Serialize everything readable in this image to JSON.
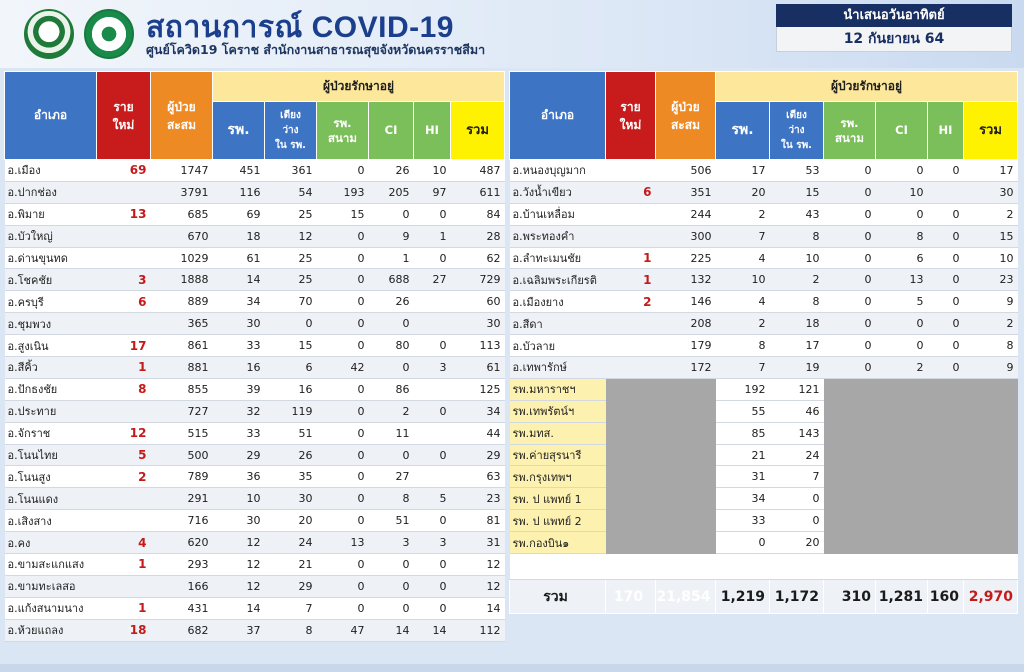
{
  "header": {
    "title": "สถานการณ์ COVID-19",
    "subtitle": "ศูนย์โควิด19 โคราช  สำนักงานสาธารณสุขจังหวัดนครราชสีมา",
    "date_label": "นำเสนอวันอาทิตย์",
    "date_value": "12 กันยายน 64",
    "logos": [
      "provincial-health-office-logo",
      "ministry-of-public-health-logo"
    ]
  },
  "columns": {
    "district": "อำเภอ",
    "new_line1": "ราย",
    "new_line2": "ใหม่",
    "cum_line1": "ผู้ป่วย",
    "cum_line2": "สะสม",
    "treating": "ผู้ป่วยรักษาอยู่",
    "hosp": "รพ.",
    "beds_line1": "เตียง",
    "beds_line2": "ว่าง",
    "beds_line3": "ใน รพ.",
    "field_line1": "รพ.",
    "field_line2": "สนาม",
    "ci": "CI",
    "hi": "HI",
    "total": "รวม"
  },
  "colors": {
    "district_header": "#3d74c4",
    "new_header": "#c81c1c",
    "cum_header": "#ee8a24",
    "group_header": "#fde79a",
    "field_header": "#7bbf5a",
    "total_header": "#fff200"
  },
  "left_rows": [
    {
      "district": "อ.เมือง",
      "new": "69",
      "cum": "1747",
      "hosp": "451",
      "beds": "361",
      "field": "0",
      "ci": "26",
      "hi": "10",
      "total": "487"
    },
    {
      "district": "อ.ปากช่อง",
      "new": "",
      "cum": "3791",
      "hosp": "116",
      "beds": "54",
      "field": "193",
      "ci": "205",
      "hi": "97",
      "total": "611"
    },
    {
      "district": "อ.พิมาย",
      "new": "13",
      "cum": "685",
      "hosp": "69",
      "beds": "25",
      "field": "15",
      "ci": "0",
      "hi": "0",
      "total": "84"
    },
    {
      "district": "อ.บัวใหญ่",
      "new": "",
      "cum": "670",
      "hosp": "18",
      "beds": "12",
      "field": "0",
      "ci": "9",
      "hi": "1",
      "total": "28"
    },
    {
      "district": "อ.ด่านขุนทด",
      "new": "",
      "cum": "1029",
      "hosp": "61",
      "beds": "25",
      "field": "0",
      "ci": "1",
      "hi": "0",
      "total": "62"
    },
    {
      "district": "อ.โชคชัย",
      "new": "3",
      "cum": "1888",
      "hosp": "14",
      "beds": "25",
      "field": "0",
      "ci": "688",
      "hi": "27",
      "total": "729"
    },
    {
      "district": "อ.ครบุรี",
      "new": "6",
      "cum": "889",
      "hosp": "34",
      "beds": "70",
      "field": "0",
      "ci": "26",
      "hi": "",
      "total": "60"
    },
    {
      "district": "อ.ชุมพวง",
      "new": "",
      "cum": "365",
      "hosp": "30",
      "beds": "0",
      "field": "0",
      "ci": "0",
      "hi": "",
      "total": "30"
    },
    {
      "district": "อ.สูงเนิน",
      "new": "17",
      "cum": "861",
      "hosp": "33",
      "beds": "15",
      "field": "0",
      "ci": "80",
      "hi": "0",
      "total": "113"
    },
    {
      "district": "อ.สีคิ้ว",
      "new": "1",
      "cum": "881",
      "hosp": "16",
      "beds": "6",
      "field": "42",
      "ci": "0",
      "hi": "3",
      "total": "61"
    },
    {
      "district": "อ.ปักธงชัย",
      "new": "8",
      "cum": "855",
      "hosp": "39",
      "beds": "16",
      "field": "0",
      "ci": "86",
      "hi": "",
      "total": "125"
    },
    {
      "district": "อ.ประทาย",
      "new": "",
      "cum": "727",
      "hosp": "32",
      "beds": "119",
      "field": "0",
      "ci": "2",
      "hi": "0",
      "total": "34"
    },
    {
      "district": "อ.จักราช",
      "new": "12",
      "cum": "515",
      "hosp": "33",
      "beds": "51",
      "field": "0",
      "ci": "11",
      "hi": "",
      "total": "44"
    },
    {
      "district": "อ.โนนไทย",
      "new": "5",
      "cum": "500",
      "hosp": "29",
      "beds": "26",
      "field": "0",
      "ci": "0",
      "hi": "0",
      "total": "29"
    },
    {
      "district": "อ.โนนสูง",
      "new": "2",
      "cum": "789",
      "hosp": "36",
      "beds": "35",
      "field": "0",
      "ci": "27",
      "hi": "",
      "total": "63"
    },
    {
      "district": "อ.โนนแดง",
      "new": "",
      "cum": "291",
      "hosp": "10",
      "beds": "30",
      "field": "0",
      "ci": "8",
      "hi": "5",
      "total": "23"
    },
    {
      "district": "อ.เสิงสาง",
      "new": "",
      "cum": "716",
      "hosp": "30",
      "beds": "20",
      "field": "0",
      "ci": "51",
      "hi": "0",
      "total": "81"
    },
    {
      "district": "อ.คง",
      "new": "4",
      "cum": "620",
      "hosp": "12",
      "beds": "24",
      "field": "13",
      "ci": "3",
      "hi": "3",
      "total": "31"
    },
    {
      "district": "อ.ขามสะแกแสง",
      "new": "1",
      "cum": "293",
      "hosp": "12",
      "beds": "21",
      "field": "0",
      "ci": "0",
      "hi": "0",
      "total": "12"
    },
    {
      "district": "อ.ขามทะเลสอ",
      "new": "",
      "cum": "166",
      "hosp": "12",
      "beds": "29",
      "field": "0",
      "ci": "0",
      "hi": "0",
      "total": "12"
    },
    {
      "district": "อ.แก้งสนามนาง",
      "new": "1",
      "cum": "431",
      "hosp": "14",
      "beds": "7",
      "field": "0",
      "ci": "0",
      "hi": "0",
      "total": "14"
    },
    {
      "district": "อ.ห้วยแถลง",
      "new": "18",
      "cum": "682",
      "hosp": "37",
      "beds": "8",
      "field": "47",
      "ci": "14",
      "hi": "14",
      "total": "112"
    }
  ],
  "right_rows": [
    {
      "district": "อ.หนองบุญมาก",
      "new": "",
      "cum": "506",
      "hosp": "17",
      "beds": "53",
      "field": "0",
      "ci": "0",
      "hi": "0",
      "total": "17"
    },
    {
      "district": "อ.วังน้ำเขียว",
      "new": "6",
      "cum": "351",
      "hosp": "20",
      "beds": "15",
      "field": "0",
      "ci": "10",
      "hi": "",
      "total": "30"
    },
    {
      "district": "อ.บ้านเหลื่อม",
      "new": "",
      "cum": "244",
      "hosp": "2",
      "beds": "43",
      "field": "0",
      "ci": "0",
      "hi": "0",
      "total": "2"
    },
    {
      "district": "อ.พระทองคำ",
      "new": "",
      "cum": "300",
      "hosp": "7",
      "beds": "8",
      "field": "0",
      "ci": "8",
      "hi": "0",
      "total": "15"
    },
    {
      "district": "อ.ลำทะเมนชัย",
      "new": "1",
      "cum": "225",
      "hosp": "4",
      "beds": "10",
      "field": "0",
      "ci": "6",
      "hi": "0",
      "total": "10"
    },
    {
      "district": "อ.เฉลิมพระเกียรติ",
      "new": "1",
      "cum": "132",
      "hosp": "10",
      "beds": "2",
      "field": "0",
      "ci": "13",
      "hi": "0",
      "total": "23"
    },
    {
      "district": "อ.เมืองยาง",
      "new": "2",
      "cum": "146",
      "hosp": "4",
      "beds": "8",
      "field": "0",
      "ci": "5",
      "hi": "0",
      "total": "9"
    },
    {
      "district": "อ.สีดา",
      "new": "",
      "cum": "208",
      "hosp": "2",
      "beds": "18",
      "field": "0",
      "ci": "0",
      "hi": "0",
      "total": "2"
    },
    {
      "district": "อ.บัวลาย",
      "new": "",
      "cum": "179",
      "hosp": "8",
      "beds": "17",
      "field": "0",
      "ci": "0",
      "hi": "0",
      "total": "8"
    },
    {
      "district": "อ.เทพารักษ์",
      "new": "",
      "cum": "172",
      "hosp": "7",
      "beds": "19",
      "field": "0",
      "ci": "2",
      "hi": "0",
      "total": "9"
    }
  ],
  "hospital_rows": [
    {
      "name": "รพ.มหาราชฯ",
      "hosp": "192",
      "beds": "121"
    },
    {
      "name": "รพ.เทพรัตน์ฯ",
      "hosp": "55",
      "beds": "46"
    },
    {
      "name": "รพ.มทส.",
      "hosp": "85",
      "beds": "143"
    },
    {
      "name": "รพ.ค่ายสุรนารี",
      "hosp": "21",
      "beds": "24"
    },
    {
      "name": "รพ.กรุงเทพฯ",
      "hosp": "31",
      "beds": "7"
    },
    {
      "name": "รพ. ป แพทย์ 1",
      "hosp": "34",
      "beds": "0"
    },
    {
      "name": "รพ. ป แพทย์ 2",
      "hosp": "33",
      "beds": "0"
    },
    {
      "name": "รพ.กองบิน๑",
      "hosp": "0",
      "beds": "20"
    }
  ],
  "totals": {
    "label": "รวม",
    "new": "170",
    "cum": "21,854",
    "hosp": "1,219",
    "beds": "1,172",
    "field": "310",
    "ci": "1,281",
    "hi": "160",
    "total": "2,970"
  }
}
